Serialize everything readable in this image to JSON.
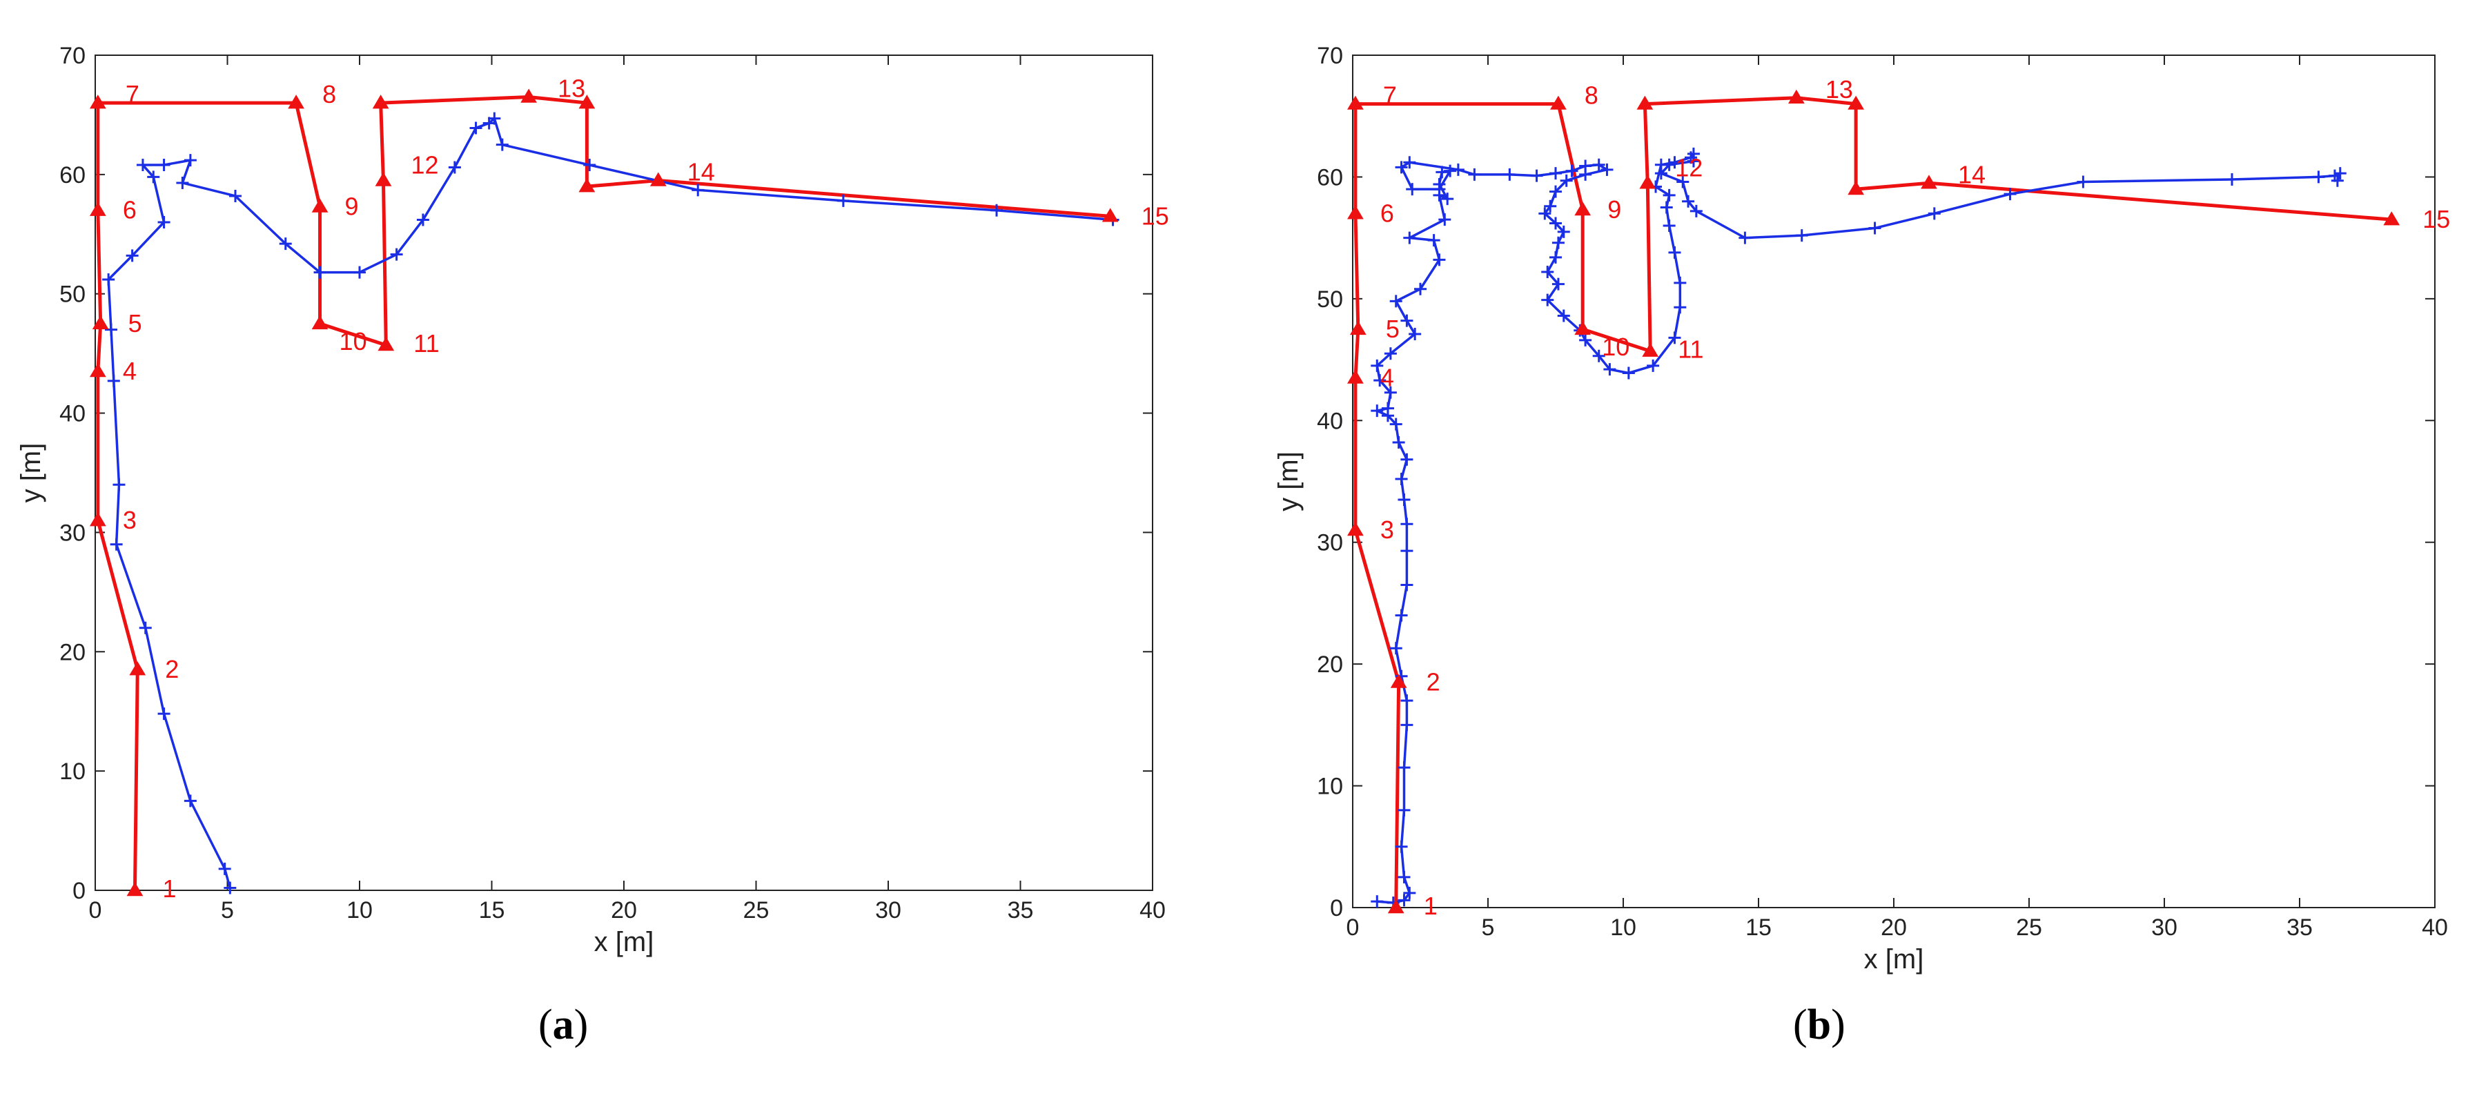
{
  "colors": {
    "reference": "#ee1111",
    "estimate": "#1a2ee6",
    "axis": "#222222"
  },
  "panels": [
    {
      "caption_letter": "a"
    },
    {
      "caption_letter": "b"
    }
  ],
  "chart_data": [
    {
      "type": "line",
      "title": "",
      "xlabel": "x [m]",
      "ylabel": "y [m]",
      "xlim": [
        0,
        40
      ],
      "ylim": [
        0,
        70
      ],
      "xticks": [
        0,
        5,
        10,
        15,
        20,
        25,
        30,
        35,
        40
      ],
      "yticks": [
        0,
        10,
        20,
        30,
        40,
        50,
        60,
        70
      ],
      "grid": false,
      "reference_path": {
        "marker": "triangle",
        "points": [
          {
            "label": "1",
            "x": 1.5,
            "y": 0
          },
          {
            "label": "2",
            "x": 1.6,
            "y": 18.5
          },
          {
            "label": "3",
            "x": 0.1,
            "y": 31
          },
          {
            "label": "4",
            "x": 0.1,
            "y": 43.5
          },
          {
            "label": "5",
            "x": 0.2,
            "y": 47.5
          },
          {
            "label": "6",
            "x": 0.1,
            "y": 57
          },
          {
            "label": "7",
            "x": 0.1,
            "y": 66
          },
          {
            "label": "8",
            "x": 7.6,
            "y": 66
          },
          {
            "label": "9",
            "x": 8.5,
            "y": 57.3
          },
          {
            "label": "10",
            "x": 8.5,
            "y": 47.5
          },
          {
            "label": "11",
            "x": 11,
            "y": 45.7
          },
          {
            "label": "12",
            "x": 10.9,
            "y": 59.5
          },
          {
            "label": "13",
            "x": 10.8,
            "y": 66
          },
          {
            "label": "13",
            "x": 16.4,
            "y": 66.5
          },
          {
            "label": "13",
            "x": 18.6,
            "y": 66
          },
          {
            "label": "14",
            "x": 18.6,
            "y": 59
          },
          {
            "label": "14",
            "x": 21.3,
            "y": 59.5
          },
          {
            "label": "15",
            "x": 38.4,
            "y": 56.5
          }
        ],
        "labeled_points": [
          {
            "label": "1",
            "x": 1.5,
            "y": 0
          },
          {
            "label": "2",
            "x": 1.6,
            "y": 18.5
          },
          {
            "label": "3",
            "x": 0.1,
            "y": 31
          },
          {
            "label": "4",
            "x": 0.1,
            "y": 43.5
          },
          {
            "label": "5",
            "x": 0.2,
            "y": 47.5
          },
          {
            "label": "6",
            "x": 0.1,
            "y": 57
          },
          {
            "label": "7",
            "x": 0.1,
            "y": 66
          },
          {
            "label": "8",
            "x": 7.6,
            "y": 66
          },
          {
            "label": "9",
            "x": 8.5,
            "y": 57.3
          },
          {
            "label": "10",
            "x": 8.5,
            "y": 47.5
          },
          {
            "label": "11",
            "x": 11,
            "y": 45.7
          },
          {
            "label": "12",
            "x": 10.9,
            "y": 59.5
          },
          {
            "label": "13",
            "x": 16.4,
            "y": 66.5
          },
          {
            "label": "14",
            "x": 21.3,
            "y": 59.5
          },
          {
            "label": "15",
            "x": 38.4,
            "y": 56.5
          }
        ]
      },
      "estimated_path": {
        "marker": "plus",
        "points": [
          [
            5.1,
            0.2
          ],
          [
            4.9,
            1.8
          ],
          [
            3.6,
            7.5
          ],
          [
            2.6,
            14.8
          ],
          [
            1.9,
            22
          ],
          [
            0.8,
            29
          ],
          [
            0.9,
            34
          ],
          [
            0.7,
            42.7
          ],
          [
            0.6,
            47
          ],
          [
            0.5,
            51.2
          ],
          [
            1.4,
            53.2
          ],
          [
            2.6,
            56
          ],
          [
            2.2,
            59.8
          ],
          [
            1.8,
            60.8
          ],
          [
            2.6,
            60.8
          ],
          [
            3.6,
            61.2
          ],
          [
            3.3,
            59.3
          ],
          [
            5.3,
            58.2
          ],
          [
            7.2,
            54.2
          ],
          [
            8.5,
            51.8
          ],
          [
            10,
            51.8
          ],
          [
            11.4,
            53.3
          ],
          [
            12.4,
            56.2
          ],
          [
            13.6,
            60.6
          ],
          [
            14.4,
            63.9
          ],
          [
            14.9,
            64.3
          ],
          [
            15.1,
            64.7
          ],
          [
            15.4,
            62.5
          ],
          [
            18.7,
            60.8
          ],
          [
            22.8,
            58.7
          ],
          [
            28.3,
            57.8
          ],
          [
            34.1,
            57
          ],
          [
            38.5,
            56.2
          ]
        ]
      }
    },
    {
      "type": "line",
      "title": "",
      "xlabel": "x [m]",
      "ylabel": "y [m]",
      "xlim": [
        0,
        40
      ],
      "ylim": [
        0,
        70
      ],
      "xticks": [
        0,
        5,
        10,
        15,
        20,
        25,
        30,
        35,
        40
      ],
      "yticks": [
        0,
        10,
        20,
        30,
        40,
        50,
        60,
        70
      ],
      "grid": false,
      "reference_path": {
        "marker": "triangle",
        "points": [
          {
            "label": "1",
            "x": 1.6,
            "y": 0
          },
          {
            "label": "2",
            "x": 1.7,
            "y": 18.5
          },
          {
            "label": "3",
            "x": 0.1,
            "y": 31
          },
          {
            "label": "4",
            "x": 0.1,
            "y": 43.5
          },
          {
            "label": "5",
            "x": 0.2,
            "y": 47.5
          },
          {
            "label": "6",
            "x": 0.1,
            "y": 57
          },
          {
            "label": "7",
            "x": 0.1,
            "y": 66
          },
          {
            "label": "8",
            "x": 7.6,
            "y": 66
          },
          {
            "label": "9",
            "x": 8.5,
            "y": 57.3
          },
          {
            "label": "10",
            "x": 8.5,
            "y": 47.5
          },
          {
            "label": "11",
            "x": 11,
            "y": 45.7
          },
          {
            "label": "12",
            "x": 10.9,
            "y": 59.5
          },
          {
            "label": "13",
            "x": 10.8,
            "y": 66
          },
          {
            "label": "13",
            "x": 16.4,
            "y": 66.5
          },
          {
            "label": "13",
            "x": 18.6,
            "y": 66
          },
          {
            "label": "14",
            "x": 18.6,
            "y": 59
          },
          {
            "label": "14",
            "x": 21.3,
            "y": 59.5
          },
          {
            "label": "15",
            "x": 38.4,
            "y": 56.5
          }
        ],
        "labeled_points": [
          {
            "label": "1",
            "x": 1.6,
            "y": 0
          },
          {
            "label": "2",
            "x": 1.7,
            "y": 18.5
          },
          {
            "label": "3",
            "x": 0.1,
            "y": 31
          },
          {
            "label": "4",
            "x": 0.1,
            "y": 43.5
          },
          {
            "label": "5",
            "x": 0.2,
            "y": 47.5
          },
          {
            "label": "6",
            "x": 0.1,
            "y": 57
          },
          {
            "label": "7",
            "x": 0.1,
            "y": 66
          },
          {
            "label": "8",
            "x": 7.6,
            "y": 66
          },
          {
            "label": "9",
            "x": 8.5,
            "y": 57.3
          },
          {
            "label": "10",
            "x": 8.5,
            "y": 47.5
          },
          {
            "label": "11",
            "x": 11,
            "y": 45.7
          },
          {
            "label": "12",
            "x": 10.9,
            "y": 59.5
          },
          {
            "label": "13",
            "x": 16.4,
            "y": 66.5
          },
          {
            "label": "14",
            "x": 21.3,
            "y": 59.5
          },
          {
            "label": "15",
            "x": 38.4,
            "y": 56.5
          }
        ]
      },
      "estimated_path": {
        "marker": "plus",
        "points": [
          [
            0.9,
            0.5
          ],
          [
            1.5,
            0.4
          ],
          [
            1.9,
            0.6
          ],
          [
            2.1,
            1.2
          ],
          [
            1.9,
            2.5
          ],
          [
            1.8,
            5
          ],
          [
            1.9,
            8
          ],
          [
            1.9,
            11.5
          ],
          [
            2,
            15
          ],
          [
            2,
            17
          ],
          [
            1.8,
            19
          ],
          [
            1.6,
            21.3
          ],
          [
            1.8,
            24
          ],
          [
            2,
            26.5
          ],
          [
            2,
            29.3
          ],
          [
            2,
            31.5
          ],
          [
            1.9,
            33.5
          ],
          [
            1.8,
            35.2
          ],
          [
            2,
            36.8
          ],
          [
            1.7,
            38.2
          ],
          [
            1.6,
            39.7
          ],
          [
            1.3,
            40.4
          ],
          [
            0.9,
            40.8
          ],
          [
            1.3,
            41
          ],
          [
            1.4,
            42.3
          ],
          [
            1,
            43.3
          ],
          [
            0.9,
            44.5
          ],
          [
            1.4,
            45.5
          ],
          [
            2.3,
            47.1
          ],
          [
            2,
            48.2
          ],
          [
            1.6,
            49.8
          ],
          [
            2.5,
            50.8
          ],
          [
            3.2,
            53.2
          ],
          [
            3,
            54.8
          ],
          [
            2.1,
            55
          ],
          [
            3.4,
            56.5
          ],
          [
            3.2,
            58.5
          ],
          [
            3.5,
            58.2
          ],
          [
            3.2,
            59.4
          ],
          [
            3.3,
            60.4
          ],
          [
            3.6,
            60.5
          ],
          [
            3.2,
            59
          ],
          [
            2.2,
            59
          ],
          [
            1.8,
            60.8
          ],
          [
            2.1,
            61.2
          ],
          [
            3.9,
            60.6
          ],
          [
            4.5,
            60.2
          ],
          [
            5.8,
            60.2
          ],
          [
            6.8,
            60.1
          ],
          [
            7.5,
            60.3
          ],
          [
            8.1,
            60.5
          ],
          [
            8.6,
            60.9
          ],
          [
            9.1,
            61
          ],
          [
            9.4,
            60.6
          ],
          [
            8.6,
            60.2
          ],
          [
            7.9,
            59.7
          ],
          [
            7.5,
            58.8
          ],
          [
            7.3,
            57.6
          ],
          [
            7.1,
            57
          ],
          [
            7.5,
            56.2
          ],
          [
            7.8,
            55.5
          ],
          [
            7.6,
            54.6
          ],
          [
            7.5,
            53.4
          ],
          [
            7.2,
            52.2
          ],
          [
            7.6,
            51.2
          ],
          [
            7.2,
            49.9
          ],
          [
            7.8,
            48.6
          ],
          [
            8.4,
            47.4
          ],
          [
            8.6,
            46.6
          ],
          [
            9.1,
            45.3
          ],
          [
            9.5,
            44.2
          ],
          [
            10.2,
            43.9
          ],
          [
            11.1,
            44.5
          ],
          [
            11.9,
            46.8
          ],
          [
            12.1,
            49.3
          ],
          [
            12.1,
            51.3
          ],
          [
            11.9,
            53.8
          ],
          [
            11.7,
            56
          ],
          [
            11.6,
            57.5
          ],
          [
            11.7,
            58.5
          ],
          [
            11.2,
            59.2
          ],
          [
            11.4,
            61
          ],
          [
            11.9,
            61.2
          ],
          [
            12.5,
            61.6
          ],
          [
            12.6,
            61.9
          ],
          [
            12.6,
            61.3
          ],
          [
            11.7,
            61
          ],
          [
            11.4,
            60.3
          ],
          [
            12.2,
            59.6
          ],
          [
            12.4,
            58
          ],
          [
            12.7,
            57.2
          ],
          [
            14.5,
            55
          ],
          [
            16.6,
            55.2
          ],
          [
            19.3,
            55.8
          ],
          [
            21.5,
            57
          ],
          [
            24.3,
            58.6
          ],
          [
            27,
            59.6
          ],
          [
            32.5,
            59.8
          ],
          [
            35.7,
            60
          ],
          [
            36.3,
            60.1
          ],
          [
            36.5,
            60.3
          ],
          [
            36.4,
            59.7
          ]
        ]
      }
    }
  ]
}
